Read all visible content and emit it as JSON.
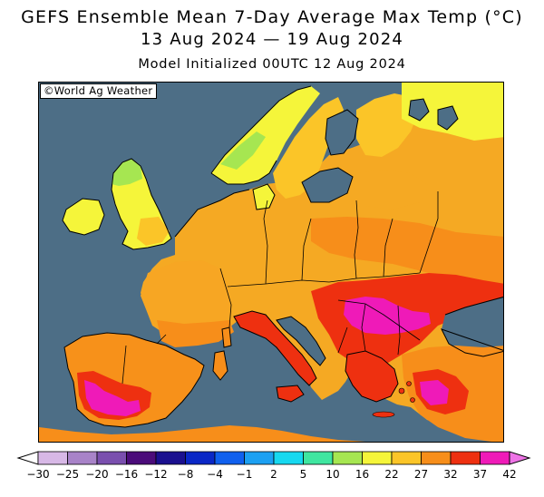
{
  "header": {
    "title_line1": "GEFS Ensemble Mean 7-Day Average Max Temp (°C)",
    "title_line2": "13 Aug 2024 — 19 Aug 2024",
    "subtitle": "Model Initialized 00UTC 12 Aug 2024"
  },
  "map": {
    "credit": "©World Ag Weather",
    "region": "Europe",
    "ocean_color": "#4d6e86"
  },
  "colorbar": {
    "labels": [
      "−30",
      "−25",
      "−20",
      "−16",
      "−12",
      "−8",
      "−4",
      "−1",
      "2",
      "5",
      "10",
      "16",
      "22",
      "27",
      "32",
      "37",
      "42"
    ],
    "colors": [
      "#d7b8e6",
      "#a883c8",
      "#7a4fae",
      "#4b0c7a",
      "#1a108f",
      "#0a27c6",
      "#1060ee",
      "#1ca0f2",
      "#16d8f0",
      "#3fe6a0",
      "#a6e651",
      "#f5f53a",
      "#fbc528",
      "#f78e1a",
      "#ee3010",
      "#ef1ab8"
    ],
    "low_end_color": "#ffffff",
    "high_end_color": "#ee74e6"
  }
}
